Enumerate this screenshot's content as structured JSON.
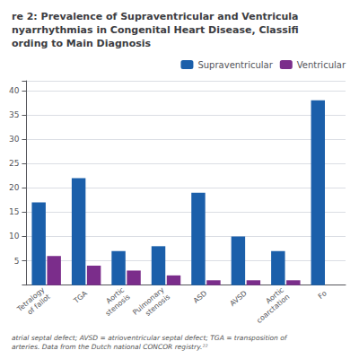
{
  "chart_data": {
    "type": "bar",
    "title": "re 2: Prevalence of Supraventricular and Ventricula\nnyarrhythmias in Congenital Heart Disease, Classifi\nording to Main Diagnosis",
    "annotations": [
      "atrial septal defect; AVSD = atrioventricular septal defect; TGA = transposition of\narteries. Data from the Dutch national CONCOR registry.²²"
    ],
    "categories": [
      "Tetralogy\nof fallot",
      "TGA",
      "Aortic\nstenosis",
      "Pulmonary\nstenosis",
      "ASD",
      "AVSD",
      "Aortic\ncoarctation",
      "Fo"
    ],
    "series": [
      {
        "name": "Supraventricular",
        "color": "#1b5faa",
        "values": [
          17,
          22,
          7,
          8,
          19,
          10,
          7,
          38
        ]
      },
      {
        "name": "Ventricular",
        "color": "#7b2d8b",
        "values": [
          6,
          4,
          3,
          2,
          1,
          1,
          1,
          0
        ]
      }
    ],
    "ylim": [
      0,
      42
    ],
    "yticks": [
      5,
      10,
      15,
      20,
      25,
      30,
      35,
      40
    ],
    "grid": true,
    "legend": "upper right"
  }
}
